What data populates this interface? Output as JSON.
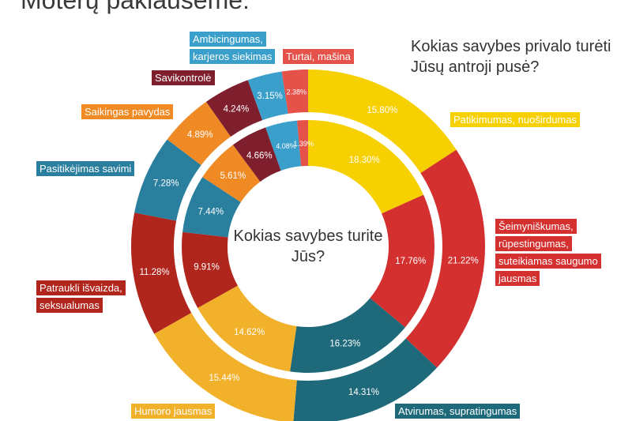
{
  "page_title": "Moterų paklausėme:",
  "chart_data": {
    "type": "pie",
    "variant": "nested-donut",
    "rings": [
      {
        "ring": "outer",
        "title": "Kokias savybes privalo turėti Jūsų antroji pusė?",
        "values": [
          15.8,
          21.22,
          14.31,
          15.44,
          11.28,
          7.28,
          4.89,
          4.24,
          3.15,
          2.38
        ],
        "value_labels": [
          "15.80%",
          "21.22%",
          "14.31%",
          "15.44%",
          "11.28%",
          "7.28%",
          "4.89%",
          "4.24%",
          "3.15%",
          "2.38%"
        ]
      },
      {
        "ring": "inner",
        "title": "Kokias savybes turite Jūs?",
        "values": [
          18.3,
          17.76,
          16.23,
          14.62,
          9.91,
          7.44,
          5.61,
          4.66,
          4.08,
          1.39
        ],
        "value_labels": [
          "18.30%",
          "17.76%",
          "16.23%",
          "14.62%",
          "9.91%",
          "7.44%",
          "5.61%",
          "4.66%",
          "4.08%",
          "1.39%"
        ]
      }
    ],
    "categories": [
      {
        "lines": [
          "Patikimumas, nuoširdumas"
        ],
        "color": "#f7d000"
      },
      {
        "lines": [
          "Šeimyniškumas,",
          "rūpestingumas,",
          "suteikiamas saugumo",
          "jausmas"
        ],
        "color": "#d3302f"
      },
      {
        "lines": [
          "Atvirumas, supratingumas"
        ],
        "color": "#1e6a7b"
      },
      {
        "lines": [
          "Humoro jausmas"
        ],
        "color": "#f2b12a"
      },
      {
        "lines": [
          "Patraukli išvaizda,",
          "seksualumas"
        ],
        "color": "#b0261c"
      },
      {
        "lines": [
          "Pasitikėjimas savimi"
        ],
        "color": "#2a7f9f"
      },
      {
        "lines": [
          "Saikingas pavydas"
        ],
        "color": "#f08a24"
      },
      {
        "lines": [
          "Savikontrolė"
        ],
        "color": "#7f1f2d"
      },
      {
        "lines": [
          "Ambicingumas,",
          "karjeros siekimas"
        ],
        "color": "#3a9fca"
      },
      {
        "lines": [
          "Turtai, mašina"
        ],
        "color": "#e5524a"
      }
    ],
    "start": "12 o'clock",
    "direction": "clockwise"
  }
}
